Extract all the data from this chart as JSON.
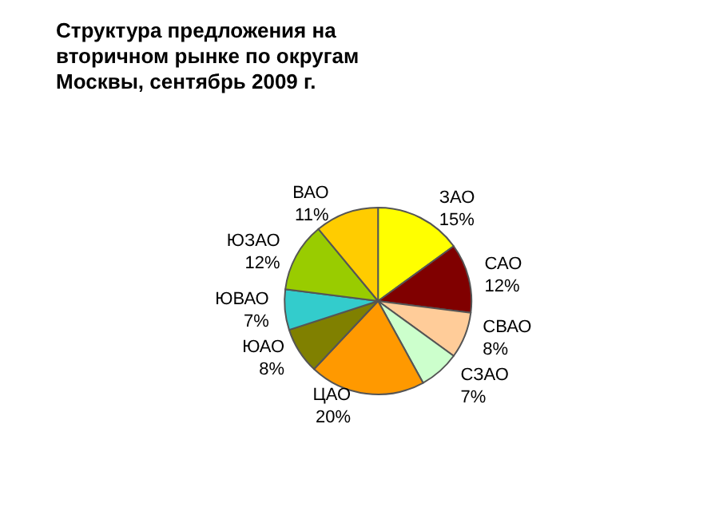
{
  "chart_data": {
    "type": "pie",
    "title": "Структура предложения на вторичном рынке по округам Москвы, сентябрь 2009 г.",
    "categories": [
      "ЗАО",
      "САО",
      "СВАО",
      "СЗАО",
      "ЦАО",
      "ЮАО",
      "ЮВАО",
      "ЮЗАО",
      "ВАО"
    ],
    "values": [
      15,
      12,
      8,
      7,
      20,
      8,
      7,
      12,
      11
    ],
    "value_labels": [
      "15%",
      "12%",
      "8%",
      "7%",
      "20%",
      "8%",
      "7%",
      "12%",
      "11%"
    ],
    "colors": [
      "#ffff00",
      "#800000",
      "#ffcc99",
      "#ccffcc",
      "#ff9900",
      "#808000",
      "#33cccc",
      "#99cc00",
      "#ffcc00"
    ],
    "legend": false
  }
}
